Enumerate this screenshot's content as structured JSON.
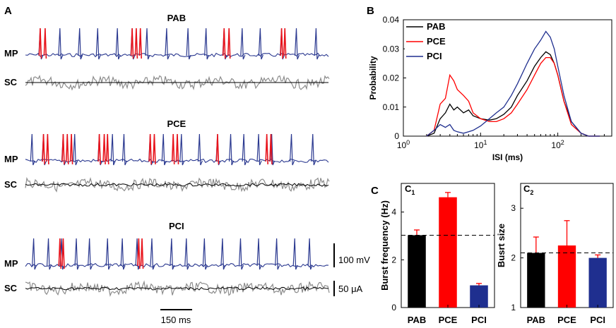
{
  "colors": {
    "trace": "#2b3990",
    "burst": "#e8141c",
    "current": "#8c8c8c",
    "black": "#000000",
    "red": "#ff0000",
    "blue": "#1f2f8f"
  },
  "panels": {
    "a": {
      "label": "A"
    },
    "b": {
      "label": "B"
    },
    "c": {
      "label": "C",
      "c1": "C",
      "c1_sub": "1",
      "c2": "C",
      "c2_sub": "2"
    }
  },
  "traces": {
    "mp_label": "MP",
    "sc_label": "SC",
    "conditions": [
      {
        "title": "PAB",
        "spikes": [
          0.9,
          2.1,
          3.3,
          4.4,
          5.6,
          6.5,
          7.4,
          8.6,
          9.9,
          11.0,
          12.1,
          13.2,
          14.3,
          15.6,
          16.5,
          17.7
        ],
        "bursts": [
          [
            0.9,
            1.2
          ],
          [
            6.5,
            6.75,
            7.0
          ],
          [
            12.1,
            12.4
          ],
          [
            15.6,
            15.8
          ]
        ]
      },
      {
        "title": "PCE",
        "spikes": [
          0.4,
          1.1,
          2.3,
          3.0,
          4.5,
          5.3,
          6.0,
          7.6,
          8.4,
          9.5,
          10.6,
          11.7,
          12.5,
          13.3,
          14.2,
          15.0,
          16.2,
          17.5
        ],
        "bursts": [
          [
            1.1,
            1.35
          ],
          [
            2.3,
            2.55,
            2.8
          ],
          [
            4.5,
            4.8,
            5.0
          ],
          [
            7.6,
            7.85
          ],
          [
            9.0,
            9.25
          ],
          [
            11.7
          ],
          [
            14.7,
            14.95
          ]
        ]
      },
      {
        "title": "PCI",
        "spikes": [
          0.5,
          1.4,
          2.2,
          3.1,
          3.9,
          5.0,
          5.9,
          6.8,
          7.7,
          8.9,
          9.8,
          10.9,
          12.0,
          13.1,
          14.2,
          15.3,
          16.4,
          17.3
        ],
        "bursts": [
          [
            2.1,
            2.3
          ],
          [
            6.9,
            7.1
          ]
        ]
      }
    ],
    "scale_mp": "100 mV",
    "scale_sc": "50 μA",
    "scale_time": "150 ms"
  },
  "chart_data": [
    {
      "type": "line",
      "title": "",
      "xlabel": "ISI (ms)",
      "ylabel": "Probability",
      "xscale": "log",
      "xlim": [
        1,
        500
      ],
      "ylim": [
        0,
        0.04
      ],
      "yticks": [
        0,
        0.01,
        0.02,
        0.03,
        0.04
      ],
      "ytick_labels": [
        "0",
        "0.01",
        "0.02",
        "0.03",
        "0.04"
      ],
      "xtick_labels": [
        {
          "base": "10",
          "exp": "0"
        },
        {
          "base": "10",
          "exp": "1"
        },
        {
          "base": "10",
          "exp": "2"
        }
      ],
      "legend": "top-left",
      "series": [
        {
          "name": "PAB",
          "x": [
            2.0,
            2.5,
            3.0,
            3.5,
            4.0,
            4.5,
            5.0,
            6.0,
            7.0,
            8.0,
            10.0,
            13.0,
            16.0,
            20.0,
            25.0,
            30.0,
            40.0,
            50.0,
            60.0,
            70.0,
            80.0,
            90.0,
            100.0,
            120.0,
            150.0,
            200.0,
            250.0,
            300.0,
            350.0
          ],
          "values": [
            0.0,
            0.001,
            0.006,
            0.008,
            0.011,
            0.009,
            0.01,
            0.008,
            0.009,
            0.007,
            0.006,
            0.0055,
            0.006,
            0.0075,
            0.01,
            0.014,
            0.019,
            0.024,
            0.027,
            0.029,
            0.028,
            0.025,
            0.021,
            0.012,
            0.005,
            0.001,
            0.0,
            0.0,
            0.0
          ]
        },
        {
          "name": "PCE",
          "x": [
            2.0,
            2.5,
            3.0,
            3.5,
            4.0,
            4.5,
            5.0,
            6.0,
            7.0,
            8.0,
            10.0,
            13.0,
            16.0,
            20.0,
            25.0,
            30.0,
            40.0,
            50.0,
            60.0,
            70.0,
            80.0,
            90.0,
            100.0,
            120.0,
            150.0,
            200.0,
            250.0,
            300.0,
            350.0
          ],
          "values": [
            0.0,
            0.002,
            0.011,
            0.013,
            0.021,
            0.019,
            0.016,
            0.014,
            0.012,
            0.008,
            0.006,
            0.005,
            0.005,
            0.006,
            0.008,
            0.011,
            0.016,
            0.021,
            0.025,
            0.027,
            0.027,
            0.025,
            0.021,
            0.012,
            0.004,
            0.001,
            0.0,
            0.0,
            0.0
          ]
        },
        {
          "name": "PCI",
          "x": [
            2.0,
            2.5,
            3.0,
            3.5,
            4.0,
            4.5,
            5.0,
            6.0,
            7.0,
            8.0,
            10.0,
            13.0,
            16.0,
            20.0,
            25.0,
            30.0,
            40.0,
            50.0,
            60.0,
            70.0,
            80.0,
            90.0,
            100.0,
            120.0,
            150.0,
            200.0,
            250.0,
            300.0,
            350.0
          ],
          "values": [
            0.0,
            0.002,
            0.004,
            0.003,
            0.004,
            0.002,
            0.0015,
            0.001,
            0.0015,
            0.002,
            0.0035,
            0.006,
            0.008,
            0.01,
            0.014,
            0.018,
            0.025,
            0.03,
            0.033,
            0.036,
            0.034,
            0.03,
            0.024,
            0.014,
            0.005,
            0.001,
            0.0,
            0.0,
            0.0
          ]
        }
      ]
    },
    {
      "type": "bar",
      "panel": "C1",
      "categories": [
        "PAB",
        "PCE",
        "PCI"
      ],
      "values": [
        3.03,
        4.62,
        0.93
      ],
      "errors": [
        0.22,
        0.2,
        0.08
      ],
      "colors": [
        "#000000",
        "#ff0000",
        "#1f2f8f"
      ],
      "xlabel": "",
      "ylabel": "Burst frequency (Hz)",
      "ylim": [
        0,
        5.2
      ],
      "yticks": [
        0,
        2,
        4
      ],
      "reference_line": 3.03
    },
    {
      "type": "bar",
      "panel": "C2",
      "categories": [
        "PAB",
        "PCE",
        "PCI"
      ],
      "values": [
        2.1,
        2.25,
        2.0
      ],
      "errors": [
        0.32,
        0.5,
        0.06
      ],
      "colors": [
        "#000000",
        "#ff0000",
        "#1f2f8f"
      ],
      "xlabel": "",
      "ylabel": "Busrt size",
      "ylim": [
        1,
        3.5
      ],
      "yticks": [
        1,
        2,
        3
      ],
      "reference_line": 2.1
    }
  ]
}
